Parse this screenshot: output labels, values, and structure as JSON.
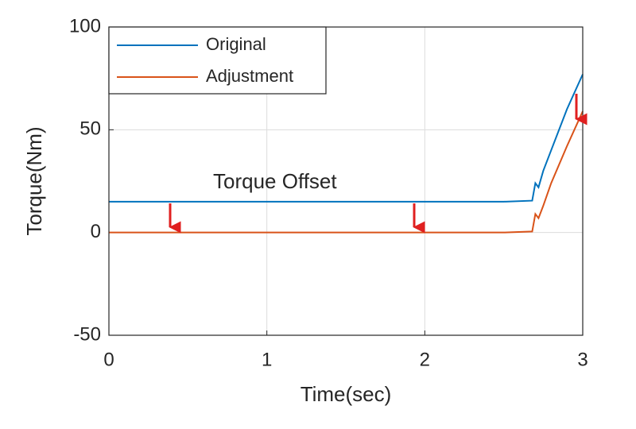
{
  "chart_data": {
    "type": "line",
    "xlabel": "Time(sec)",
    "ylabel": "Torque(Nm)",
    "annotation": "Torque Offset",
    "x": [
      0,
      0.5,
      1,
      1.5,
      2,
      2.5,
      2.68,
      2.7,
      2.72,
      2.75,
      2.8,
      2.9,
      3
    ],
    "series": [
      {
        "name": "Original",
        "color": "#0072bd",
        "values": [
          15,
          15,
          15,
          15,
          15,
          15,
          15.5,
          24,
          22,
          30,
          40,
          60,
          77
        ]
      },
      {
        "name": "Adjustment",
        "color": "#d95319",
        "values": [
          0,
          0,
          0,
          0,
          0,
          0,
          0.5,
          9,
          7,
          13,
          24,
          42,
          59
        ]
      }
    ],
    "xlim": [
      0,
      3
    ],
    "xticks": [
      0,
      1,
      2,
      3
    ],
    "ylim": [
      -50,
      100
    ],
    "yticks": [
      -50,
      0,
      50,
      100
    ],
    "grid": true,
    "legend": "upper left"
  }
}
